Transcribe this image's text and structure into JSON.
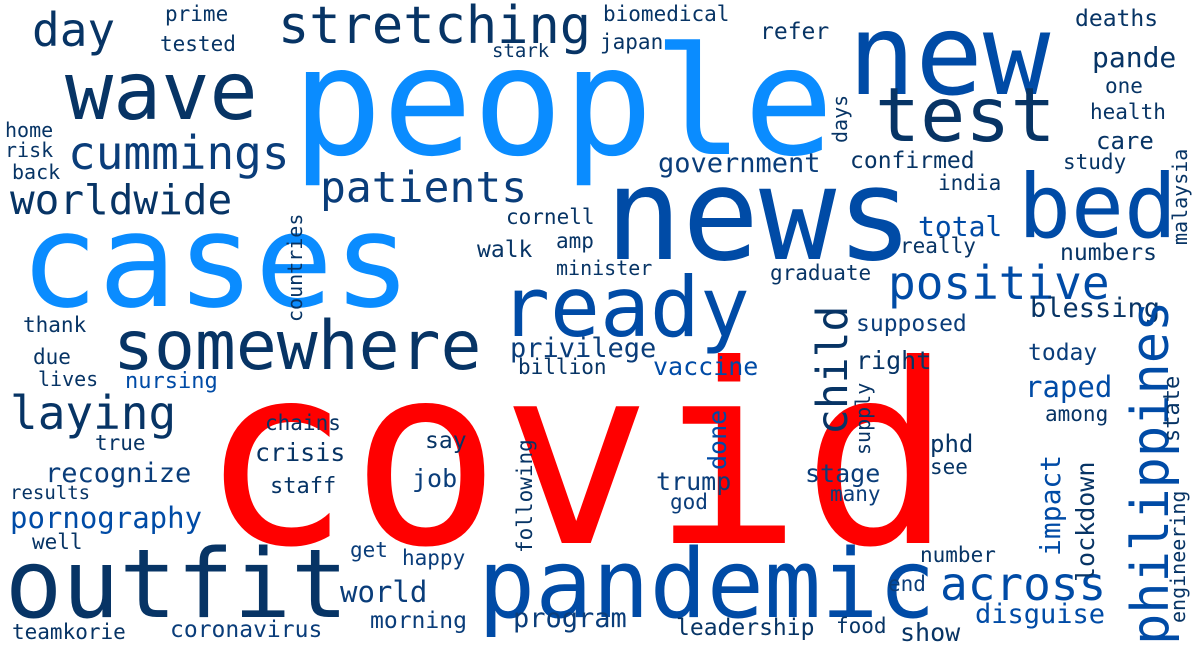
{
  "words": [
    "covid",
    "people",
    "cases",
    "news",
    "new",
    "pandemic",
    "outfit",
    "bed",
    "ready",
    "wave",
    "test",
    "somewhere",
    "stretching",
    "patients",
    "cummings",
    "worldwide",
    "positive",
    "laying",
    "day",
    "across",
    "philippines",
    "child",
    "government",
    "blessing",
    "confirmed",
    "total",
    "pornography",
    "raped",
    "recognize",
    "privilege",
    "coronavirus",
    "leadership",
    "disguise",
    "program",
    "world",
    "morning",
    "teamkorie",
    "vaccine",
    "supposed",
    "today",
    "nursing",
    "chains",
    "crisis",
    "staff",
    "job",
    "trump",
    "god",
    "stage",
    "many",
    "say",
    "phd",
    "see",
    "impact",
    "lockdown",
    "state",
    "engineering",
    "number",
    "end",
    "show",
    "food",
    "happy",
    "get",
    "well",
    "results",
    "true",
    "lives",
    "due",
    "thank",
    "home",
    "risk",
    "back",
    "tested",
    "prime",
    "biomedical",
    "japan",
    "stark",
    "refer",
    "deaths",
    "pande",
    "one",
    "health",
    "care",
    "study",
    "days",
    "india",
    "cornell",
    "amp",
    "walk",
    "minister",
    "graduate",
    "really",
    "numbers",
    "countries",
    "right",
    "supply",
    "billion",
    "done",
    "following",
    "among",
    "malaysia"
  ],
  "colors": {
    "red": "#ff0000",
    "bright_blue": "#0a8cff",
    "medium_blue": "#0064d2",
    "royal_blue": "#004ba6",
    "navy": "#0a3d7a",
    "dark_navy": "#073465"
  }
}
